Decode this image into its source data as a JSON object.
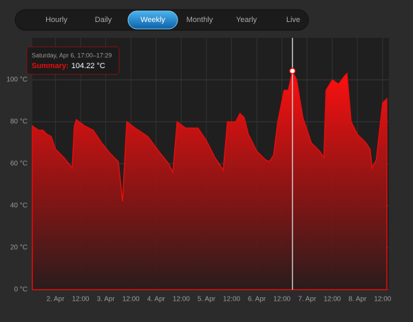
{
  "tabs": {
    "items": [
      "Hourly",
      "Daily",
      "Weekly",
      "Monthly",
      "Yearly",
      "Live"
    ],
    "active": 2
  },
  "chart_data": {
    "type": "area",
    "x": [
      "Apr 1 13:00",
      "Apr 1 16:00",
      "Apr 1 18:00",
      "Apr 1 20:00",
      "Apr 1 22:00",
      "Apr 2 00:00",
      "Apr 2 04:00",
      "Apr 2 08:00",
      "Apr 2 09:00",
      "Apr 2 10:00",
      "Apr 2 14:00",
      "Apr 2 18:00",
      "Apr 2 22:00",
      "Apr 3 02:00",
      "Apr 3 06:00",
      "Apr 3 08:00",
      "Apr 3 10:00",
      "Apr 3 14:00",
      "Apr 3 20:00",
      "Apr 4 02:00",
      "Apr 4 06:00",
      "Apr 4 08:00",
      "Apr 4 10:00",
      "Apr 4 14:00",
      "Apr 4 18:00",
      "Apr 4 20:00",
      "Apr 5 00:00",
      "Apr 5 04:00",
      "Apr 5 08:00",
      "Apr 5 10:00",
      "Apr 5 14:00",
      "Apr 5 16:00",
      "Apr 5 18:00",
      "Apr 5 20:00",
      "Apr 6 00:00",
      "Apr 6 04:00",
      "Apr 6 06:00",
      "Apr 6 08:00",
      "Apr 6 10:00",
      "Apr 6 13:00",
      "Apr 6 15:00",
      "Apr 6 17:00",
      "Apr 6 19:00",
      "Apr 6 22:00",
      "Apr 7 02:00",
      "Apr 7 06:00",
      "Apr 7 08:00",
      "Apr 7 09:00",
      "Apr 7 12:00",
      "Apr 7 15:00",
      "Apr 7 18:00",
      "Apr 7 19:00",
      "Apr 7 21:00",
      "Apr 8 00:00",
      "Apr 8 04:00",
      "Apr 8 06:00",
      "Apr 8 07:00",
      "Apr 8 09:00",
      "Apr 8 11:00",
      "Apr 8 12:00",
      "Apr 8 14:00"
    ],
    "series": [
      {
        "name": "Summary",
        "color": "#e80c0c",
        "values": [
          78,
          76,
          76,
          74,
          73,
          67,
          63,
          58,
          78,
          81,
          78,
          76,
          70,
          65,
          61,
          42,
          80,
          77,
          73,
          65,
          60,
          56,
          80,
          77,
          77,
          77,
          71,
          63,
          57,
          80,
          80,
          84,
          82,
          74,
          66,
          62,
          61,
          64,
          80,
          95,
          95,
          104.22,
          100,
          82,
          70,
          66,
          63,
          95,
          100,
          98,
          102,
          103,
          80,
          74,
          70,
          67,
          58,
          62,
          80,
          89,
          91
        ]
      }
    ],
    "xlim": [
      "Apr 1 13:00",
      "Apr 8 15:00"
    ],
    "xticks": [
      {
        "value": "Apr 2 00:00",
        "label": "2. Apr"
      },
      {
        "value": "Apr 2 12:00",
        "label": "12:00"
      },
      {
        "value": "Apr 3 00:00",
        "label": "3. Apr"
      },
      {
        "value": "Apr 3 12:00",
        "label": "12:00"
      },
      {
        "value": "Apr 4 00:00",
        "label": "4. Apr"
      },
      {
        "value": "Apr 4 12:00",
        "label": "12:00"
      },
      {
        "value": "Apr 5 00:00",
        "label": "5. Apr"
      },
      {
        "value": "Apr 5 12:00",
        "label": "12:00"
      },
      {
        "value": "Apr 6 00:00",
        "label": "6. Apr"
      },
      {
        "value": "Apr 6 12:00",
        "label": "12:00"
      },
      {
        "value": "Apr 7 00:00",
        "label": "7. Apr"
      },
      {
        "value": "Apr 7 12:00",
        "label": "12:00"
      },
      {
        "value": "Apr 8 00:00",
        "label": "8. Apr"
      },
      {
        "value": "Apr 8 12:00",
        "label": "12:00"
      }
    ],
    "ylim": [
      0,
      120
    ],
    "yticks": [
      {
        "value": 0,
        "label": "0 °C"
      },
      {
        "value": 20,
        "label": "20 °C"
      },
      {
        "value": 40,
        "label": "40 °C"
      },
      {
        "value": 60,
        "label": "60 °C"
      },
      {
        "value": 80,
        "label": "80 °C"
      },
      {
        "value": 100,
        "label": "100 °C"
      }
    ],
    "grid": true,
    "tooltip": {
      "title": "Saturday, Apr 6, 17:00–17:29",
      "name": "Summary:",
      "label": "104.22 °C"
    }
  }
}
